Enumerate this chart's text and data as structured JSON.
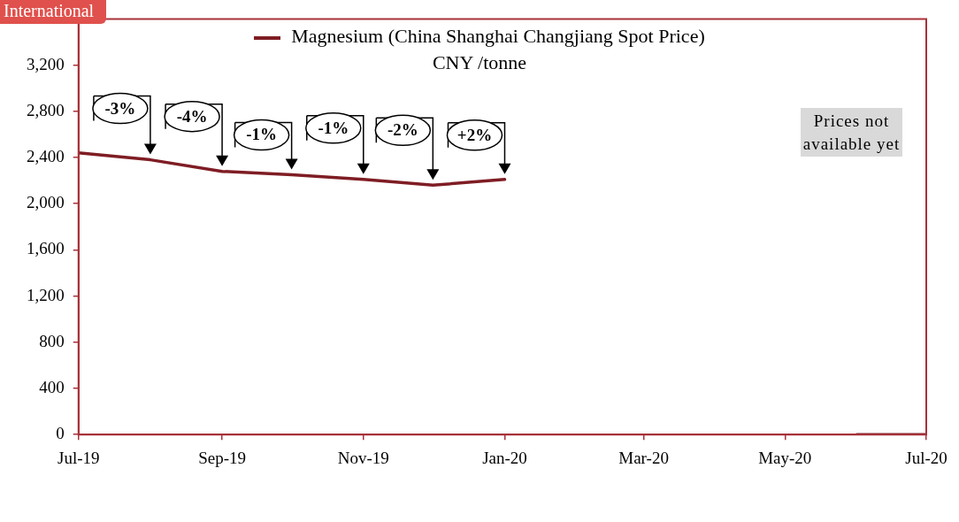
{
  "chart_data": {
    "type": "line",
    "subtitle": "CNY /tonne",
    "x": [
      "2019-07",
      "2019-08",
      "2019-09",
      "2019-10",
      "2019-11",
      "2019-12",
      "2020-01",
      "2020-02",
      "2020-03",
      "2020-04",
      "2020-05",
      "2020-06",
      "2020-07"
    ],
    "series": [
      {
        "name": "Magnesium (China Shanghai Changjiang Spot Price)",
        "color": "#7f1d24",
        "values": [
          2440,
          2380,
          2280,
          2250,
          2210,
          2160,
          2210,
          null,
          null,
          null,
          null,
          0,
          0
        ]
      }
    ],
    "xlim": [
      "2019-07",
      "2020-07"
    ],
    "xticks": [
      {
        "value": "2019-07",
        "label": "Jul-19"
      },
      {
        "value": "2019-09",
        "label": "Sep-19"
      },
      {
        "value": "2019-11",
        "label": "Nov-19"
      },
      {
        "value": "2020-01",
        "label": "Jan-20"
      },
      {
        "value": "2020-03",
        "label": "Mar-20"
      },
      {
        "value": "2020-05",
        "label": "May-20"
      },
      {
        "value": "2020-07",
        "label": "Jul-20"
      }
    ],
    "ylim": [
      0,
      3600
    ],
    "yticks": [
      {
        "value": 0,
        "label": "0"
      },
      {
        "value": 400,
        "label": "400"
      },
      {
        "value": 800,
        "label": "800"
      },
      {
        "value": 1200,
        "label": "1,200"
      },
      {
        "value": 1600,
        "label": "1,600"
      },
      {
        "value": 2000,
        "label": "2,000"
      },
      {
        "value": 2400,
        "label": "2,400"
      },
      {
        "value": 2800,
        "label": "2,800"
      },
      {
        "value": 3200,
        "label": "3,200"
      }
    ],
    "grid": false,
    "legend": "top",
    "marker": "none",
    "line_style": "solid",
    "annotations": [
      "International",
      "Prices not available yet",
      {
        "text": "-3%",
        "x": "2019-08",
        "y": 2380
      },
      {
        "text": "-4%",
        "x": "2019-09",
        "y": 2280
      },
      {
        "text": "-1%",
        "x": "2019-10",
        "y": 2250
      },
      {
        "text": "-1%",
        "x": "2019-11",
        "y": 2210
      },
      {
        "text": "-2%",
        "x": "2019-12",
        "y": 2160
      },
      {
        "text": "+2%",
        "x": "2020-01",
        "y": 2210
      }
    ]
  }
}
